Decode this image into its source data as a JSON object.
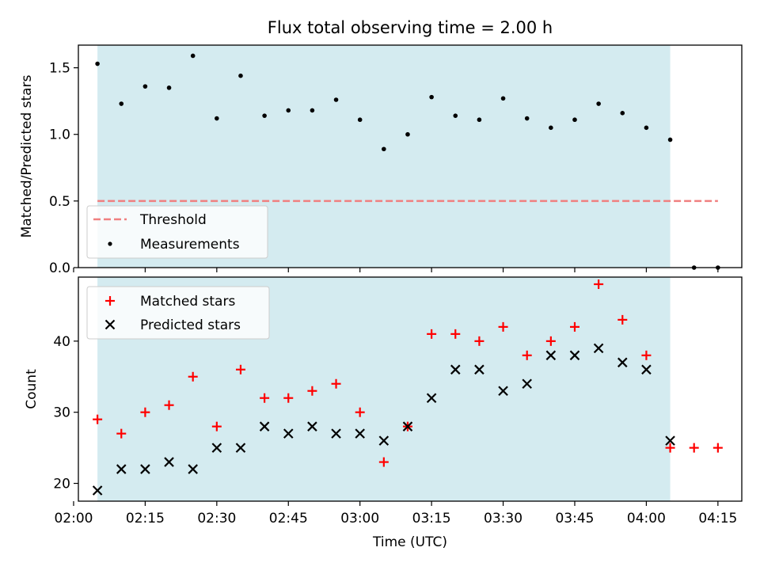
{
  "chart_data": [
    {
      "type": "scatter",
      "title": "Flux total observing time = 2.00 h",
      "xlabel": "",
      "ylabel": "Matched/Predicted stars",
      "ylim": [
        0,
        1.67
      ],
      "yticks": [
        "0.0",
        "0.5",
        "1.0",
        "1.5"
      ],
      "xlim": [
        "02:01",
        "04:20"
      ],
      "shaded_interval": [
        "02:05",
        "04:05"
      ],
      "shade_color": "#d4ebf0",
      "grid": false,
      "legend_position": "lower-left",
      "threshold": {
        "name": "Threshold",
        "value": 0.5,
        "x_start": "02:05",
        "x_end": "04:15",
        "color": "#f08080",
        "style": "dashed"
      },
      "series": [
        {
          "name": "Measurements",
          "marker": "dot",
          "color": "#000000",
          "x": [
            "02:05",
            "02:10",
            "02:15",
            "02:20",
            "02:25",
            "02:30",
            "02:35",
            "02:40",
            "02:45",
            "02:50",
            "02:55",
            "03:00",
            "03:05",
            "03:10",
            "03:15",
            "03:20",
            "03:25",
            "03:30",
            "03:35",
            "03:40",
            "03:45",
            "03:50",
            "03:55",
            "04:00",
            "04:05",
            "04:10",
            "04:15"
          ],
          "y": [
            1.53,
            1.23,
            1.36,
            1.35,
            1.59,
            1.12,
            1.44,
            1.14,
            1.18,
            1.18,
            1.26,
            1.11,
            0.89,
            1.0,
            1.28,
            1.14,
            1.11,
            1.27,
            1.12,
            1.05,
            1.11,
            1.23,
            1.16,
            1.05,
            0.96,
            0.0,
            0.0
          ]
        }
      ]
    },
    {
      "type": "scatter",
      "title": "",
      "xlabel": "Time (UTC)",
      "ylabel": "Count",
      "ylim": [
        17.5,
        49
      ],
      "yticks": [
        "20",
        "30",
        "40"
      ],
      "xlim": [
        "02:01",
        "04:20"
      ],
      "xticks": [
        "02:00",
        "02:15",
        "02:30",
        "02:45",
        "03:00",
        "03:15",
        "03:30",
        "03:45",
        "04:00",
        "04:15"
      ],
      "shaded_interval": [
        "02:05",
        "04:05"
      ],
      "shade_color": "#d4ebf0",
      "grid": false,
      "legend_position": "top-left",
      "series": [
        {
          "name": "Matched stars",
          "marker": "plus",
          "color": "#ff0000",
          "x": [
            "02:05",
            "02:10",
            "02:15",
            "02:20",
            "02:25",
            "02:30",
            "02:35",
            "02:40",
            "02:45",
            "02:50",
            "02:55",
            "03:00",
            "03:05",
            "03:10",
            "03:15",
            "03:20",
            "03:25",
            "03:30",
            "03:35",
            "03:40",
            "03:45",
            "03:50",
            "03:55",
            "04:00",
            "04:05",
            "04:10",
            "04:15"
          ],
          "y": [
            29,
            27,
            30,
            31,
            35,
            28,
            36,
            32,
            32,
            33,
            34,
            30,
            23,
            28,
            41,
            41,
            40,
            42,
            38,
            40,
            42,
            48,
            43,
            38,
            25,
            25,
            25
          ]
        },
        {
          "name": "Predicted stars",
          "marker": "x",
          "color": "#000000",
          "x": [
            "02:05",
            "02:10",
            "02:15",
            "02:20",
            "02:25",
            "02:30",
            "02:35",
            "02:40",
            "02:45",
            "02:50",
            "02:55",
            "03:00",
            "03:05",
            "03:10",
            "03:15",
            "03:20",
            "03:25",
            "03:30",
            "03:35",
            "03:40",
            "03:45",
            "03:50",
            "03:55",
            "04:00",
            "04:05"
          ],
          "y": [
            19,
            22,
            22,
            23,
            22,
            25,
            25,
            28,
            27,
            28,
            27,
            27,
            26,
            28,
            32,
            36,
            36,
            33,
            34,
            38,
            38,
            39,
            37,
            36,
            26
          ]
        }
      ]
    }
  ]
}
